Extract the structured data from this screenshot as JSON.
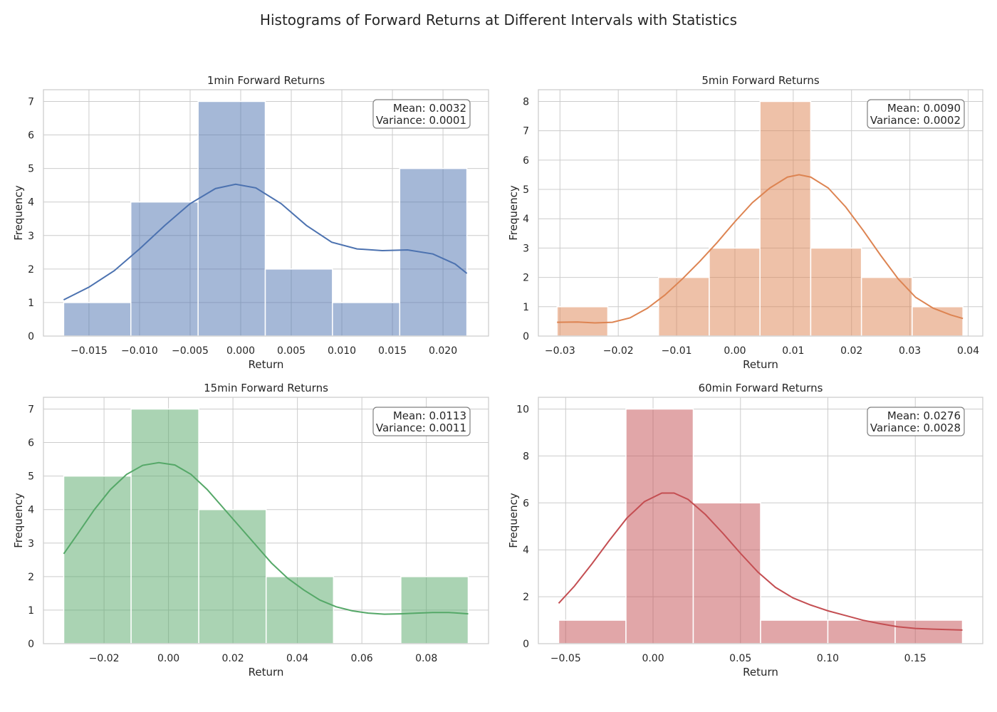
{
  "figure": {
    "title": "Histograms of Forward Returns at Different Intervals with Statistics"
  },
  "chart_data": [
    {
      "type": "bar",
      "title": "1min Forward Returns",
      "xlabel": "Return",
      "ylabel": "Frequency",
      "color": "#4c72b0",
      "bin_edges": [
        -0.0175,
        -0.01086,
        -0.00421,
        0.00243,
        0.00907,
        0.01572,
        0.02236
      ],
      "values": [
        1,
        4,
        7,
        2,
        1,
        5
      ],
      "kde": [
        [
          -0.0175,
          1.08
        ],
        [
          -0.015,
          1.46
        ],
        [
          -0.0125,
          1.95
        ],
        [
          -0.01,
          2.6
        ],
        [
          -0.0075,
          3.3
        ],
        [
          -0.005,
          3.95
        ],
        [
          -0.0025,
          4.4
        ],
        [
          -0.0005,
          4.53
        ],
        [
          0.0015,
          4.42
        ],
        [
          0.004,
          3.95
        ],
        [
          0.0065,
          3.3
        ],
        [
          0.009,
          2.8
        ],
        [
          0.0115,
          2.6
        ],
        [
          0.014,
          2.55
        ],
        [
          0.0165,
          2.57
        ],
        [
          0.019,
          2.45
        ],
        [
          0.0212,
          2.15
        ],
        [
          0.02236,
          1.87
        ]
      ],
      "xlim": [
        -0.0195,
        0.0245
      ],
      "ylim": [
        0,
        7.35
      ],
      "xticks": [
        -0.015,
        -0.01,
        -0.005,
        0.0,
        0.005,
        0.01,
        0.015,
        0.02
      ],
      "xtick_labels": [
        "−0.015",
        "−0.010",
        "−0.005",
        "0.000",
        "0.005",
        "0.010",
        "0.015",
        "0.020"
      ],
      "yticks": [
        0,
        1,
        2,
        3,
        4,
        5,
        6,
        7
      ],
      "ytick_labels": [
        "0",
        "1",
        "2",
        "3",
        "4",
        "5",
        "6",
        "7"
      ],
      "stats": [
        "Mean: 0.0032",
        "Variance: 0.0001"
      ],
      "grid": true
    },
    {
      "type": "bar",
      "title": "5min Forward Returns",
      "xlabel": "Return",
      "ylabel": "Frequency",
      "color": "#dd8452",
      "bin_edges": [
        -0.0305,
        -0.0218,
        -0.0131,
        -0.0044,
        0.0043,
        0.013,
        0.0217,
        0.0304,
        0.0391
      ],
      "values": [
        1,
        0,
        2,
        3,
        8,
        3,
        2,
        1
      ],
      "kde": [
        [
          -0.0305,
          0.47
        ],
        [
          -0.027,
          0.48
        ],
        [
          -0.024,
          0.45
        ],
        [
          -0.021,
          0.47
        ],
        [
          -0.018,
          0.62
        ],
        [
          -0.015,
          0.95
        ],
        [
          -0.012,
          1.4
        ],
        [
          -0.009,
          1.95
        ],
        [
          -0.006,
          2.55
        ],
        [
          -0.003,
          3.2
        ],
        [
          0.0,
          3.9
        ],
        [
          0.003,
          4.55
        ],
        [
          0.006,
          5.05
        ],
        [
          0.009,
          5.42
        ],
        [
          0.011,
          5.5
        ],
        [
          0.013,
          5.42
        ],
        [
          0.016,
          5.05
        ],
        [
          0.019,
          4.4
        ],
        [
          0.022,
          3.6
        ],
        [
          0.025,
          2.75
        ],
        [
          0.028,
          1.95
        ],
        [
          0.031,
          1.32
        ],
        [
          0.034,
          0.95
        ],
        [
          0.037,
          0.72
        ],
        [
          0.0391,
          0.6
        ]
      ],
      "xlim": [
        -0.0337,
        0.0425
      ],
      "ylim": [
        0,
        8.4
      ],
      "xticks": [
        -0.03,
        -0.02,
        -0.01,
        0.0,
        0.01,
        0.02,
        0.03,
        0.04
      ],
      "xtick_labels": [
        "−0.03",
        "−0.02",
        "−0.01",
        "0.00",
        "0.01",
        "0.02",
        "0.03",
        "0.04"
      ],
      "yticks": [
        0,
        1,
        2,
        3,
        4,
        5,
        6,
        7,
        8
      ],
      "ytick_labels": [
        "0",
        "1",
        "2",
        "3",
        "4",
        "5",
        "6",
        "7",
        "8"
      ],
      "stats": [
        "Mean: 0.0090",
        "Variance: 0.0002"
      ],
      "grid": true
    },
    {
      "type": "bar",
      "title": "15min Forward Returns",
      "xlabel": "Return",
      "ylabel": "Frequency",
      "color": "#55a868",
      "bin_edges": [
        -0.0325,
        -0.0116,
        0.0094,
        0.0303,
        0.0512,
        0.0721,
        0.093
      ],
      "values": [
        5,
        7,
        4,
        2,
        0,
        2
      ],
      "kde": [
        [
          -0.0325,
          2.68
        ],
        [
          -0.028,
          3.3
        ],
        [
          -0.023,
          4.0
        ],
        [
          -0.018,
          4.6
        ],
        [
          -0.013,
          5.05
        ],
        [
          -0.008,
          5.32
        ],
        [
          -0.003,
          5.4
        ],
        [
          0.002,
          5.33
        ],
        [
          0.007,
          5.05
        ],
        [
          0.012,
          4.6
        ],
        [
          0.017,
          4.05
        ],
        [
          0.022,
          3.5
        ],
        [
          0.027,
          2.95
        ],
        [
          0.032,
          2.4
        ],
        [
          0.037,
          1.95
        ],
        [
          0.042,
          1.6
        ],
        [
          0.047,
          1.3
        ],
        [
          0.052,
          1.1
        ],
        [
          0.057,
          0.98
        ],
        [
          0.062,
          0.91
        ],
        [
          0.067,
          0.88
        ],
        [
          0.072,
          0.89
        ],
        [
          0.077,
          0.91
        ],
        [
          0.082,
          0.93
        ],
        [
          0.087,
          0.93
        ],
        [
          0.093,
          0.89
        ]
      ],
      "xlim": [
        -0.0388,
        0.0993
      ],
      "ylim": [
        0,
        7.35
      ],
      "xticks": [
        -0.02,
        0.0,
        0.02,
        0.04,
        0.06,
        0.08
      ],
      "xtick_labels": [
        "−0.02",
        "0.00",
        "0.02",
        "0.04",
        "0.06",
        "0.08"
      ],
      "yticks": [
        0,
        1,
        2,
        3,
        4,
        5,
        6,
        7
      ],
      "ytick_labels": [
        "0",
        "1",
        "2",
        "3",
        "4",
        "5",
        "6",
        "7"
      ],
      "stats": [
        "Mean: 0.0113",
        "Variance: 0.0011"
      ],
      "grid": true
    },
    {
      "type": "bar",
      "title": "60min Forward Returns",
      "xlabel": "Return",
      "ylabel": "Frequency",
      "color": "#c44e52",
      "bin_edges": [
        -0.054,
        -0.0155,
        0.023,
        0.0615,
        0.1,
        0.1385,
        0.177
      ],
      "values": [
        1,
        10,
        6,
        1,
        1,
        1
      ],
      "kde": [
        [
          -0.054,
          1.72
        ],
        [
          -0.045,
          2.45
        ],
        [
          -0.035,
          3.4
        ],
        [
          -0.025,
          4.4
        ],
        [
          -0.015,
          5.35
        ],
        [
          -0.005,
          6.05
        ],
        [
          0.005,
          6.42
        ],
        [
          0.012,
          6.42
        ],
        [
          0.02,
          6.15
        ],
        [
          0.03,
          5.5
        ],
        [
          0.04,
          4.7
        ],
        [
          0.05,
          3.85
        ],
        [
          0.06,
          3.05
        ],
        [
          0.07,
          2.4
        ],
        [
          0.08,
          1.95
        ],
        [
          0.09,
          1.65
        ],
        [
          0.1,
          1.4
        ],
        [
          0.11,
          1.2
        ],
        [
          0.12,
          1.0
        ],
        [
          0.13,
          0.85
        ],
        [
          0.14,
          0.72
        ],
        [
          0.15,
          0.65
        ],
        [
          0.16,
          0.62
        ],
        [
          0.177,
          0.58
        ]
      ],
      "xlim": [
        -0.0656,
        0.1886
      ],
      "ylim": [
        0,
        10.5
      ],
      "xticks": [
        -0.05,
        0.0,
        0.05,
        0.1,
        0.15
      ],
      "xtick_labels": [
        "−0.05",
        "0.00",
        "0.05",
        "0.10",
        "0.15"
      ],
      "yticks": [
        0,
        2,
        4,
        6,
        8,
        10
      ],
      "ytick_labels": [
        "0",
        "2",
        "4",
        "6",
        "8",
        "10"
      ],
      "stats": [
        "Mean: 0.0276",
        "Variance: 0.0028"
      ],
      "grid": true
    }
  ]
}
